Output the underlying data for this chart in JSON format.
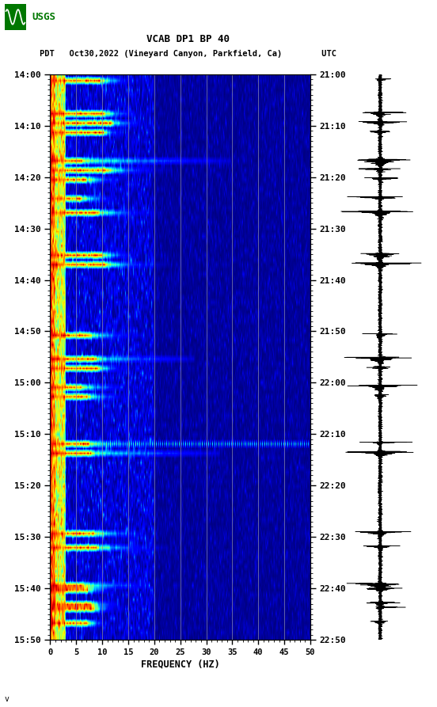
{
  "title_line1": "VCAB DP1 BP 40",
  "title_line2": "PDT   Oct30,2022 (Vineyard Canyon, Parkfield, Ca)        UTC",
  "xlabel": "FREQUENCY (HZ)",
  "freq_min": 0,
  "freq_max": 50,
  "freq_ticks": [
    0,
    5,
    10,
    15,
    20,
    25,
    30,
    35,
    40,
    45,
    50
  ],
  "time_labels_left": [
    "14:00",
    "14:10",
    "14:20",
    "14:30",
    "14:40",
    "14:50",
    "15:00",
    "15:10",
    "15:20",
    "15:30",
    "15:40",
    "15:50"
  ],
  "time_labels_right": [
    "21:00",
    "21:10",
    "21:20",
    "21:30",
    "21:40",
    "21:50",
    "22:00",
    "22:10",
    "22:20",
    "22:30",
    "22:40",
    "22:50"
  ],
  "n_time_steps": 120,
  "n_freq_steps": 500,
  "background_color": "#ffffff",
  "vertical_line_color": "#8888aa",
  "vertical_line_positions": [
    5,
    10,
    15,
    20,
    25,
    30,
    35,
    40,
    45
  ],
  "seed": 42,
  "event_rows": [
    1,
    8,
    10,
    12,
    18,
    20,
    22,
    26,
    29,
    38,
    40,
    55,
    60,
    62,
    66,
    68,
    78,
    80,
    97,
    100,
    108,
    109,
    112,
    113,
    116
  ],
  "dotted_row": 78,
  "dark_red_rows": [
    18,
    40,
    60,
    80,
    108
  ],
  "logo_color": "#007700"
}
